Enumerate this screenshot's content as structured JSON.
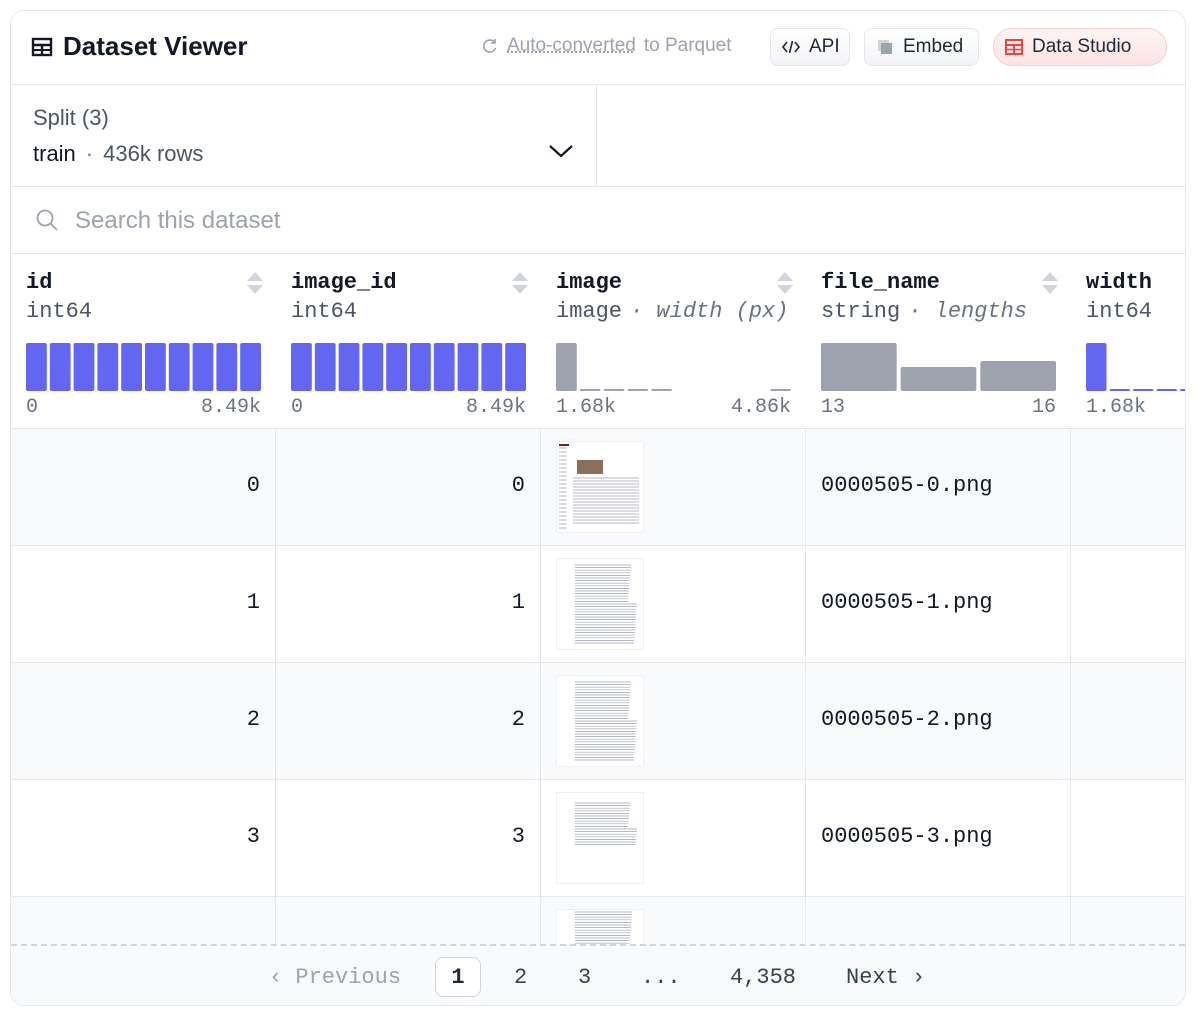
{
  "header": {
    "title": "Dataset Viewer",
    "auto_converted_link": "Auto-converted",
    "auto_converted_suffix": "to Parquet",
    "api_label": "API",
    "embed_label": "Embed",
    "studio_label": "Data Studio"
  },
  "split": {
    "label": "Split (3)",
    "value": "train",
    "separator": "·",
    "rows": "436k rows"
  },
  "search": {
    "placeholder": "Search this dataset"
  },
  "columns": [
    {
      "name": "id",
      "type": "int64",
      "type_sub": "",
      "min": "0",
      "max": "8.49k"
    },
    {
      "name": "image_id",
      "type": "int64",
      "type_sub": "",
      "min": "0",
      "max": "8.49k"
    },
    {
      "name": "image",
      "type": "image",
      "type_sub": "· width (px)",
      "min": "1.68k",
      "max": "4.86k"
    },
    {
      "name": "file_name",
      "type": "string",
      "type_sub": "· lengths",
      "min": "13",
      "max": "16"
    },
    {
      "name": "width",
      "type": "int64",
      "type_sub": "",
      "min": "1.68k",
      "max": ""
    }
  ],
  "rows": [
    {
      "id": "0",
      "image_id": "0",
      "file_name": "0000505-0.png",
      "width": ""
    },
    {
      "id": "1",
      "image_id": "1",
      "file_name": "0000505-1.png",
      "width": ""
    },
    {
      "id": "2",
      "image_id": "2",
      "file_name": "0000505-2.png",
      "width": ""
    },
    {
      "id": "3",
      "image_id": "3",
      "file_name": "0000505-3.png",
      "width": ""
    },
    {
      "id": "",
      "image_id": "",
      "file_name": "",
      "width": ""
    }
  ],
  "pagination": {
    "previous": "Previous",
    "pages": [
      "1",
      "2",
      "3"
    ],
    "ellipsis": "...",
    "last": "4,358",
    "next": "Next",
    "current": "1"
  },
  "colors": {
    "histogram_int": "#6366f1",
    "histogram_other": "#9ca3af",
    "studio_icon": "#ef4444"
  }
}
